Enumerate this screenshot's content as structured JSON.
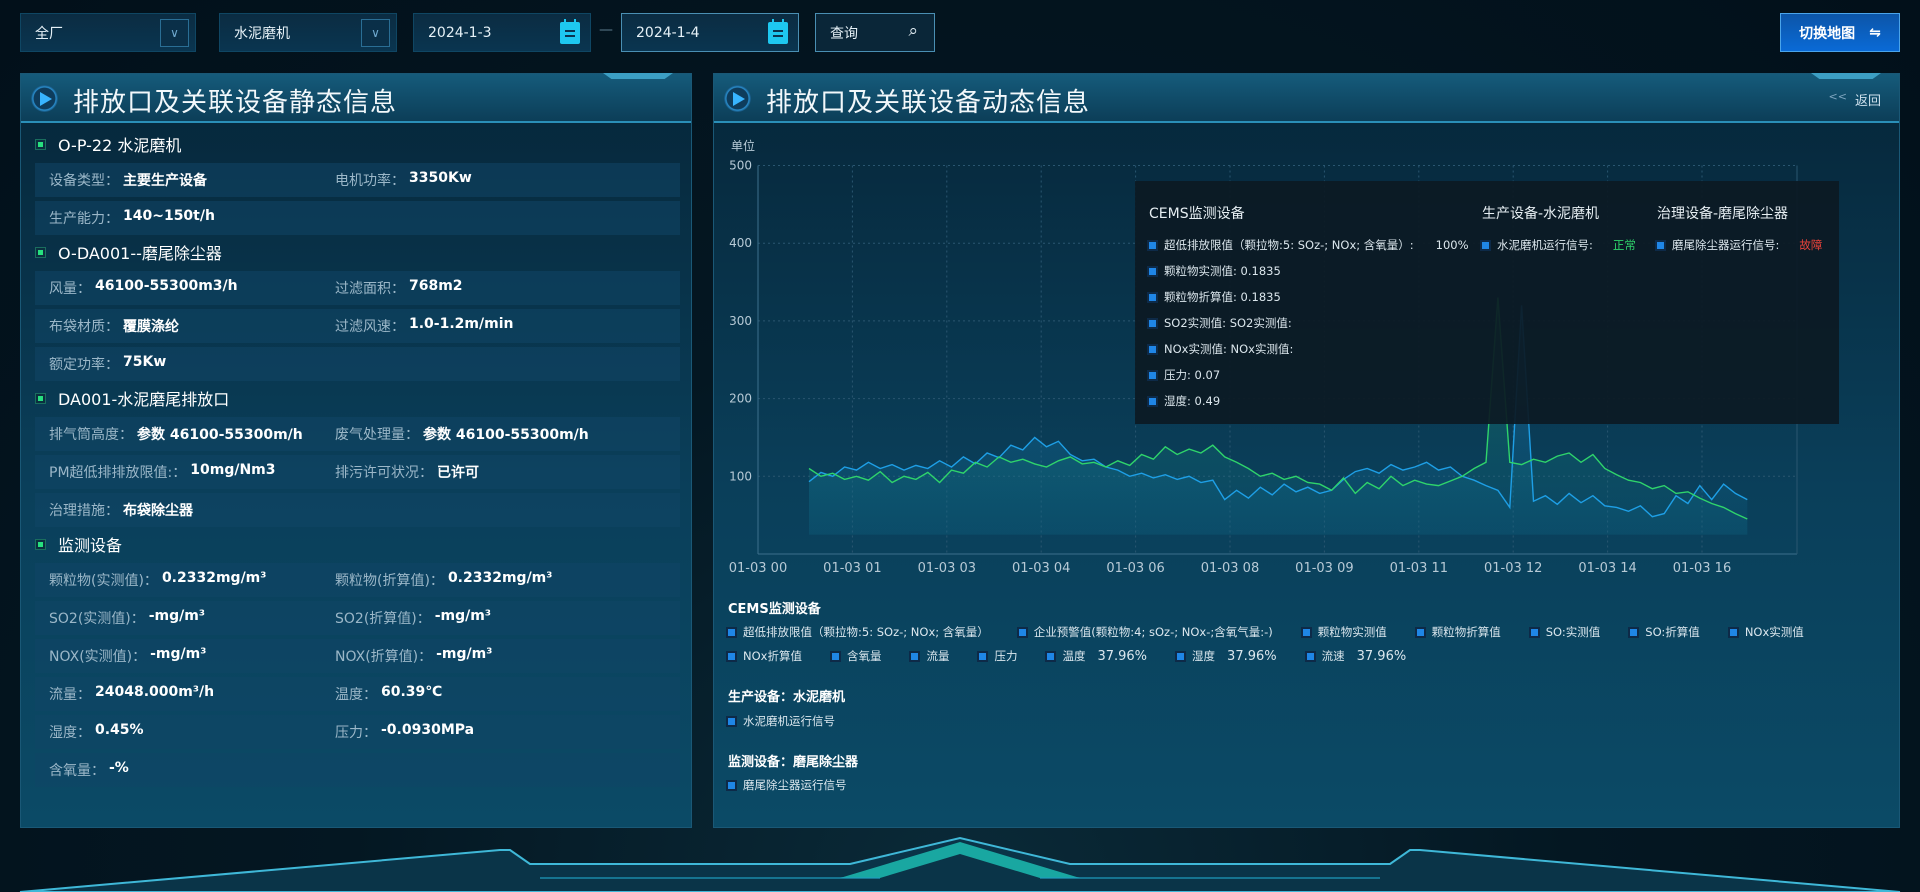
{
  "toolbar": {
    "factory": "全厂",
    "device": "水泥磨机",
    "start_date": "2024-1-3",
    "date_separator": "—",
    "end_date": "2024-1-4",
    "query_label": "查询",
    "switch_map_label": "切换地图",
    "switch_icon": "⇋",
    "search_icon": "⌕",
    "chevron_icon": "∨"
  },
  "static_panel": {
    "title": "排放口及关联设备静态信息",
    "sections": [
      {
        "title": "O-P-22 水泥磨机",
        "rows": [
          [
            {
              "label": "设备类型：",
              "value": "主要生产设备"
            },
            {
              "label": "电机功率：",
              "value": "3350Kw"
            }
          ],
          [
            {
              "label": "生产能力：",
              "value": "140~150t/h"
            }
          ]
        ]
      },
      {
        "title": "O-DA001--磨尾除尘器",
        "rows": [
          [
            {
              "label": "风量：",
              "value": "46100-55300m3/h"
            },
            {
              "label": "过滤面积：",
              "value": "768m2"
            }
          ],
          [
            {
              "label": "布袋材质：",
              "value": "覆膜涤纶"
            },
            {
              "label": "过滤风速：",
              "value": "1.0-1.2m/min"
            }
          ],
          [
            {
              "label": "额定功率：",
              "value": "75Kw"
            }
          ]
        ]
      },
      {
        "title": "DA001-水泥磨尾排放口",
        "rows": [
          [
            {
              "label": "排气筒高度：",
              "value": "参数 46100-55300m/h"
            },
            {
              "label": "废气处理量：",
              "value": "参数 46100-55300m/h"
            }
          ],
          [
            {
              "label": "PM超低排排放限值:：",
              "value": "10mg/Nm3"
            },
            {
              "label": "排污许可状况：",
              "value": "已许可"
            }
          ],
          [
            {
              "label": "治理措施：",
              "value": "布袋除尘器"
            }
          ]
        ]
      },
      {
        "title": "监测设备",
        "rows": [
          [
            {
              "label": "颗粒物(实测值)：",
              "value": "0.2332mg/m³"
            },
            {
              "label": "颗粒物(折算值)：",
              "value": "0.2332mg/m³"
            }
          ],
          [
            {
              "label": "SO2(实测值)：",
              "value": "-mg/m³"
            },
            {
              "label": "SO2(折算值)：",
              "value": "-mg/m³"
            }
          ],
          [
            {
              "label": "NOX(实测值)：",
              "value": "-mg/m³"
            },
            {
              "label": "NOX(折算值)：",
              "value": "-mg/m³"
            }
          ],
          [
            {
              "label": "流量：",
              "value": "24048.000m³/h"
            },
            {
              "label": "温度：",
              "value": "60.39℃"
            }
          ],
          [
            {
              "label": "湿度：",
              "value": "0.45%"
            },
            {
              "label": "压力：",
              "value": "-0.0930MPa"
            }
          ],
          [
            {
              "label": "含氧量：",
              "value": "-%"
            }
          ]
        ]
      }
    ]
  },
  "dynamic_panel": {
    "title": "排放口及关联设备动态信息",
    "back_label": "返回",
    "back_icon": "<<"
  },
  "tooltip": {
    "cems_title": "CEMS监测设备",
    "cems_items": [
      {
        "label": "超低排放限值（颗拉物:5: SOz-; NOx; 含氧量）:",
        "value": "100%"
      },
      {
        "label": "颗粒物实测值: 0.1835"
      },
      {
        "label": "颗粒物折算值: 0.1835"
      },
      {
        "label": "SO2实测值: SO2实测值:"
      },
      {
        "label": "NOx实测值: NOx实测值:"
      },
      {
        "label": "压力: 0.07"
      },
      {
        "label": "湿度: 0.49"
      }
    ],
    "production_title": "生产设备-水泥磨机",
    "production_item": {
      "label": "水泥磨机运行信号:",
      "value": "正常"
    },
    "treatment_title": "治理设备-磨尾除尘器",
    "treatment_item": {
      "label": "磨尾除尘器运行信号:",
      "value": "故障"
    },
    "status_colors": {
      "normal": "#2fd46b",
      "fault": "#e8423a"
    }
  },
  "legend": {
    "cems_title": "CEMS监测设备",
    "cems_row1": [
      {
        "label": "超低排放限值（颗拉物:5: SOz-; NOx; 含氧量）"
      },
      {
        "label": "企业预警值(颗粒物:4; sOz-; NOx-;含氧气量:-)"
      },
      {
        "label": "颗粒物实测值"
      },
      {
        "label": "颗粒物折算值"
      },
      {
        "label": "SO:实测值"
      },
      {
        "label": "SO:折算值"
      },
      {
        "label": "NOx实测值"
      }
    ],
    "cems_row2": [
      {
        "label": "NOx折算值"
      },
      {
        "label": "含氧量"
      },
      {
        "label": "流量"
      },
      {
        "label": "压力"
      },
      {
        "label": "温度",
        "value": "37.96%"
      },
      {
        "label": "湿度",
        "value": "37.96%"
      },
      {
        "label": "流速",
        "value": "37.96%"
      }
    ],
    "production_title": "生产设备：水泥磨机",
    "production_items": [
      {
        "label": "水泥磨机运行信号"
      }
    ],
    "monitor_title": "监测设备：磨尾除尘器",
    "monitor_items": [
      {
        "label": "磨尾除尘器运行信号"
      }
    ]
  },
  "chart_data": {
    "type": "line",
    "ylabel": "单位",
    "ylim": [
      0,
      500
    ],
    "y_ticks": [
      "500",
      "400",
      "300",
      "200",
      "100"
    ],
    "x_ticks": [
      "01-03 00",
      "01-03 01",
      "01-03 03",
      "01-03 04",
      "01-03 06",
      "01-03 08",
      "01-03 09",
      "01-03 11",
      "01-03 12",
      "01-03 14",
      "01-03 16"
    ],
    "grid": true,
    "series": [
      {
        "color": "#1e9fe6",
        "values": [
          93,
          105,
          100,
          112,
          108,
          118,
          110,
          115,
          108,
          114,
          110,
          120,
          112,
          125,
          116,
          130,
          124,
          140,
          134,
          150,
          138,
          145,
          128,
          120,
          122,
          112,
          108,
          100,
          104,
          98,
          102,
          96,
          100,
          92,
          95,
          70,
          82,
          72,
          86,
          76,
          90,
          80,
          86,
          78,
          82,
          96,
          106,
          110,
          104,
          115,
          108,
          112,
          118,
          108,
          112,
          100,
          95,
          88,
          82,
          60,
          320,
          68,
          75,
          64,
          78,
          66,
          75,
          62,
          60,
          55,
          62,
          48,
          52,
          75,
          65,
          88,
          70,
          90,
          78,
          70
        ]
      },
      {
        "color": "#2fd46b",
        "values": [
          110,
          100,
          104,
          96,
          100,
          95,
          106,
          92,
          100,
          96,
          105,
          92,
          108,
          104,
          118,
          112,
          125,
          118,
          122,
          116,
          112,
          120,
          125,
          116,
          118,
          112,
          120,
          114,
          128,
          122,
          138,
          128,
          135,
          130,
          140,
          125,
          118,
          110,
          100,
          104,
          96,
          100,
          92,
          90,
          82,
          98,
          78,
          92,
          84,
          100,
          88,
          95,
          90,
          88,
          94,
          100,
          110,
          118,
          330,
          118,
          115,
          122,
          118,
          126,
          130,
          118,
          128,
          110,
          102,
          95,
          92,
          84,
          88,
          78,
          80,
          72,
          65,
          60,
          52,
          45
        ]
      }
    ]
  }
}
